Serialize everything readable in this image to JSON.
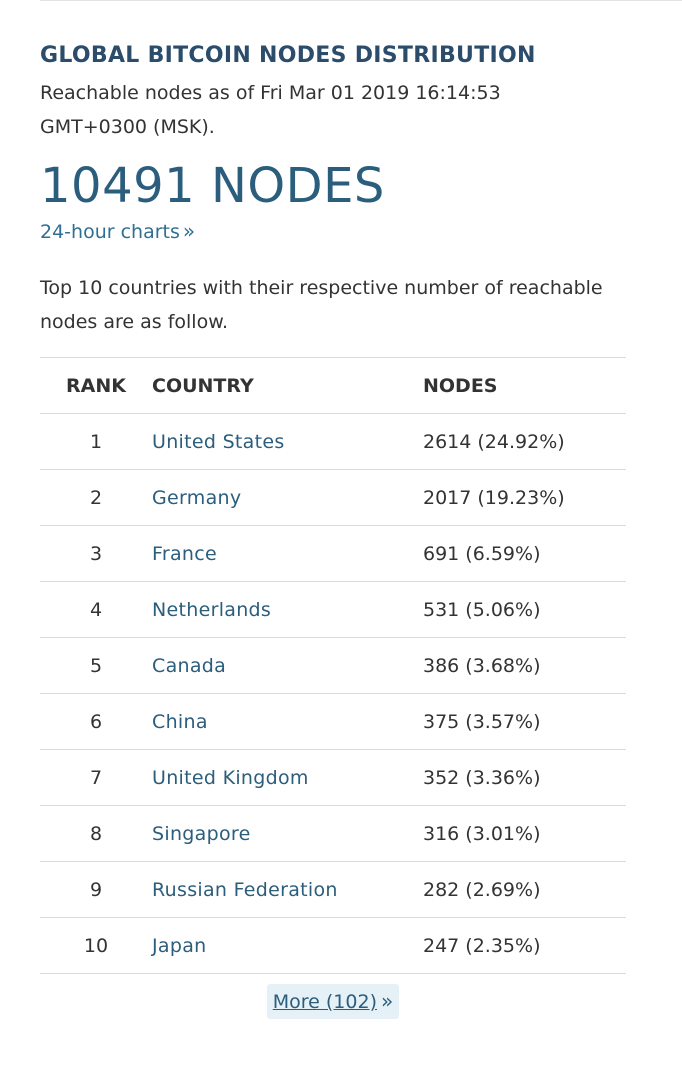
{
  "header": {
    "title": "GLOBAL BITCOIN NODES DISTRIBUTION",
    "subtitle": "Reachable nodes as of Fri Mar 01 2019 16:14:53 GMT+0300 (MSK).",
    "node_count": "10491 NODES",
    "charts_link": "24-hour charts",
    "charts_link_icon": "double-chevron-right-icon"
  },
  "intro": "Top 10 countries with their respective number of reachable nodes are as follow.",
  "table": {
    "headers": {
      "rank": "RANK",
      "country": "COUNTRY",
      "nodes": "NODES"
    },
    "rows": [
      {
        "rank": "1",
        "country": "United States",
        "nodes": "2614 (24.92%)"
      },
      {
        "rank": "2",
        "country": "Germany",
        "nodes": "2017 (19.23%)"
      },
      {
        "rank": "3",
        "country": "France",
        "nodes": "691 (6.59%)"
      },
      {
        "rank": "4",
        "country": "Netherlands",
        "nodes": "531 (5.06%)"
      },
      {
        "rank": "5",
        "country": "Canada",
        "nodes": "386 (3.68%)"
      },
      {
        "rank": "6",
        "country": "China",
        "nodes": "375 (3.57%)"
      },
      {
        "rank": "7",
        "country": "United Kingdom",
        "nodes": "352 (3.36%)"
      },
      {
        "rank": "8",
        "country": "Singapore",
        "nodes": "316 (3.01%)"
      },
      {
        "rank": "9",
        "country": "Russian Federation",
        "nodes": "282 (2.69%)"
      },
      {
        "rank": "10",
        "country": "Japan",
        "nodes": "247 (2.35%)"
      }
    ]
  },
  "more": {
    "label": "More (102)",
    "icon": "double-chevron-right-icon"
  },
  "colors": {
    "heading": "#2b4c6a",
    "link": "#2b5d7c",
    "more_bg": "#e6f0f7",
    "divider": "#dcdcdc"
  }
}
